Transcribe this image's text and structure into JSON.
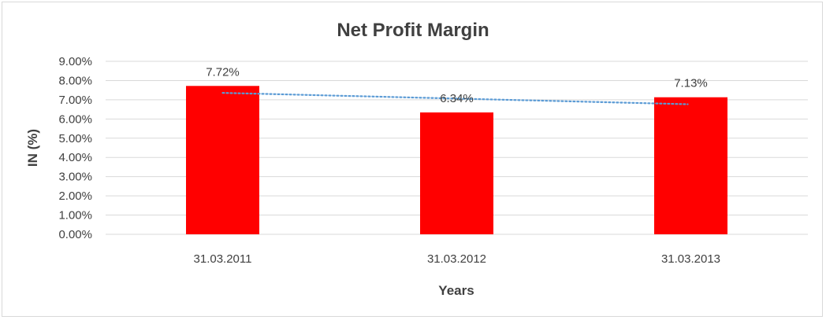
{
  "chart_data": {
    "type": "bar",
    "title": "Net Profit Margin",
    "xlabel": "Years",
    "ylabel": "IN (%)",
    "categories": [
      "31.03.2011",
      "31.03.2012",
      "31.03.2013"
    ],
    "values": [
      7.72,
      6.34,
      7.13
    ],
    "data_labels": [
      "7.72%",
      "6.34%",
      "7.13%"
    ],
    "ylim": [
      0,
      9
    ],
    "yticks": [
      "0.00%",
      "1.00%",
      "2.00%",
      "3.00%",
      "4.00%",
      "5.00%",
      "6.00%",
      "7.00%",
      "8.00%",
      "9.00%"
    ],
    "grid": true,
    "trendline": {
      "type": "linear",
      "style": "dotted",
      "color": "#5b9bd5"
    },
    "bar_color": "#ff0000"
  }
}
